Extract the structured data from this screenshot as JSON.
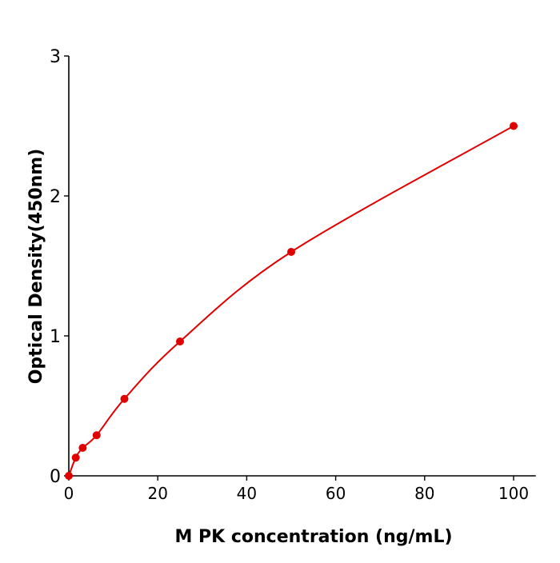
{
  "chart_data": {
    "type": "line",
    "title": "",
    "xlabel": "M  PK concentration (ng/mL)",
    "ylabel": "Optical Density(450nm)",
    "xlim": [
      0,
      105
    ],
    "ylim": [
      0,
      3
    ],
    "xticks": [
      0,
      20,
      40,
      60,
      80,
      100
    ],
    "yticks": [
      0,
      1,
      2,
      3
    ],
    "xtick_labels": [
      "0",
      "20",
      "40",
      "60",
      "80",
      "100"
    ],
    "ytick_labels": [
      "0",
      "1",
      "2",
      "3"
    ],
    "grid": false,
    "series": [
      {
        "x": [
          0,
          1.5625,
          3.125,
          6.25,
          12.5,
          25,
          50,
          100
        ],
        "y": [
          0.0,
          0.13,
          0.2,
          0.29,
          0.55,
          0.96,
          1.6,
          2.5
        ],
        "color": "#e00000",
        "markers": true,
        "fitted_curve": true
      }
    ]
  }
}
